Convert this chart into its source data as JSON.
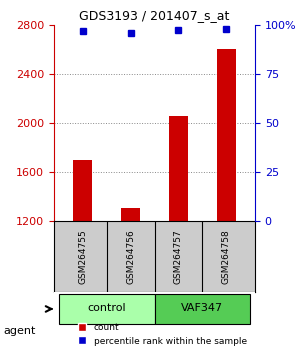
{
  "title": "GDS3193 / 201407_s_at",
  "samples": [
    "GSM264755",
    "GSM264756",
    "GSM264757",
    "GSM264758"
  ],
  "counts": [
    1700,
    1310,
    2060,
    2600
  ],
  "percentiles": [
    97,
    96,
    97.5,
    98
  ],
  "ylim_left": [
    1200,
    2800
  ],
  "ylim_right": [
    0,
    100
  ],
  "yticks_left": [
    1200,
    1600,
    2000,
    2400,
    2800
  ],
  "yticks_right": [
    0,
    25,
    50,
    75,
    100
  ],
  "ytick_labels_right": [
    "0",
    "25",
    "50",
    "75",
    "100%"
  ],
  "bar_color": "#cc0000",
  "dot_color": "#0000cc",
  "groups": [
    {
      "label": "control",
      "indices": [
        0,
        1
      ],
      "color": "#aaffaa"
    },
    {
      "label": "VAF347",
      "indices": [
        2,
        3
      ],
      "color": "#55cc55"
    }
  ],
  "agent_label": "agent",
  "legend_count_label": "count",
  "legend_pct_label": "percentile rank within the sample",
  "grid_color": "#888888",
  "background_color": "#ffffff",
  "sample_box_color": "#cccccc",
  "bar_width": 0.4
}
